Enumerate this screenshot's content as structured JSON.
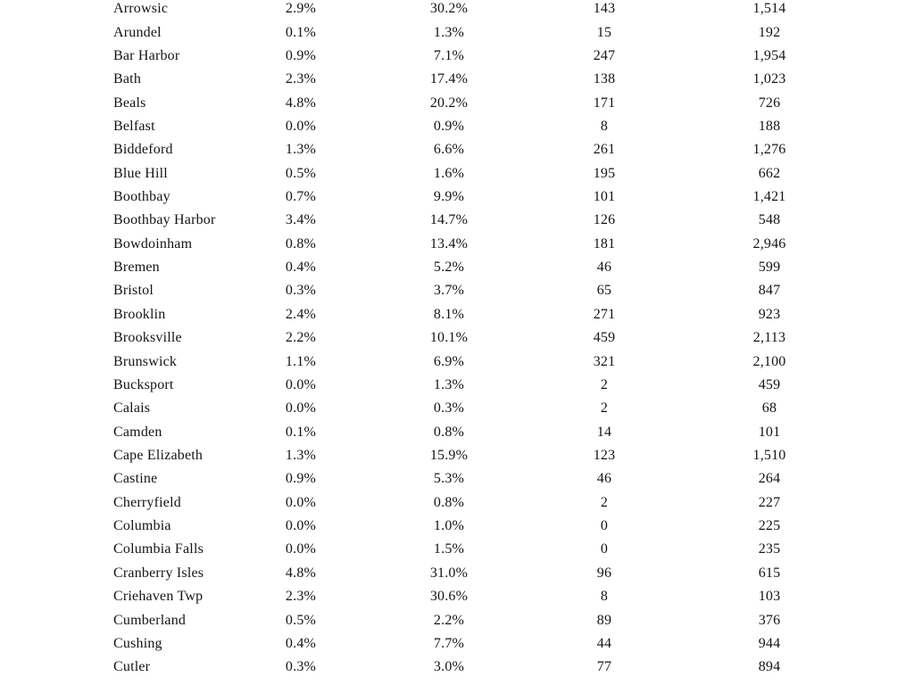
{
  "page": {
    "background_color": "#ffffff",
    "text_color": "#141414"
  },
  "table": {
    "description": "town-statistics-table",
    "rows": [
      [
        "Arrowsic",
        "2.9%",
        "30.2%",
        "143",
        "1,514"
      ],
      [
        "Arundel",
        "0.1%",
        "1.3%",
        "15",
        "192"
      ],
      [
        "Bar Harbor",
        "0.9%",
        "7.1%",
        "247",
        "1,954"
      ],
      [
        "Bath",
        "2.3%",
        "17.4%",
        "138",
        "1,023"
      ],
      [
        "Beals",
        "4.8%",
        "20.2%",
        "171",
        "726"
      ],
      [
        "Belfast",
        "0.0%",
        "0.9%",
        "8",
        "188"
      ],
      [
        "Biddeford",
        "1.3%",
        "6.6%",
        "261",
        "1,276"
      ],
      [
        "Blue Hill",
        "0.5%",
        "1.6%",
        "195",
        "662"
      ],
      [
        "Boothbay",
        "0.7%",
        "9.9%",
        "101",
        "1,421"
      ],
      [
        "Boothbay Harbor",
        "3.4%",
        "14.7%",
        "126",
        "548"
      ],
      [
        "Bowdoinham",
        "0.8%",
        "13.4%",
        "181",
        "2,946"
      ],
      [
        "Bremen",
        "0.4%",
        "5.2%",
        "46",
        "599"
      ],
      [
        "Bristol",
        "0.3%",
        "3.7%",
        "65",
        "847"
      ],
      [
        "Brooklin",
        "2.4%",
        "8.1%",
        "271",
        "923"
      ],
      [
        "Brooksville",
        "2.2%",
        "10.1%",
        "459",
        "2,113"
      ],
      [
        "Brunswick",
        "1.1%",
        "6.9%",
        "321",
        "2,100"
      ],
      [
        "Bucksport",
        "0.0%",
        "1.3%",
        "2",
        "459"
      ],
      [
        "Calais",
        "0.0%",
        "0.3%",
        "2",
        "68"
      ],
      [
        "Camden",
        "0.1%",
        "0.8%",
        "14",
        "101"
      ],
      [
        "Cape Elizabeth",
        "1.3%",
        "15.9%",
        "123",
        "1,510"
      ],
      [
        "Castine",
        "0.9%",
        "5.3%",
        "46",
        "264"
      ],
      [
        "Cherryfield",
        "0.0%",
        "0.8%",
        "2",
        "227"
      ],
      [
        "Columbia",
        "0.0%",
        "1.0%",
        "0",
        "225"
      ],
      [
        "Columbia Falls",
        "0.0%",
        "1.5%",
        "0",
        "235"
      ],
      [
        "Cranberry Isles",
        "4.8%",
        "31.0%",
        "96",
        "615"
      ],
      [
        "Criehaven Twp",
        "2.3%",
        "30.6%",
        "8",
        "103"
      ],
      [
        "Cumberland",
        "0.5%",
        "2.2%",
        "89",
        "376"
      ],
      [
        "Cushing",
        "0.4%",
        "7.7%",
        "44",
        "944"
      ],
      [
        "Cutler",
        "0.3%",
        "3.0%",
        "77",
        "894"
      ]
    ]
  }
}
